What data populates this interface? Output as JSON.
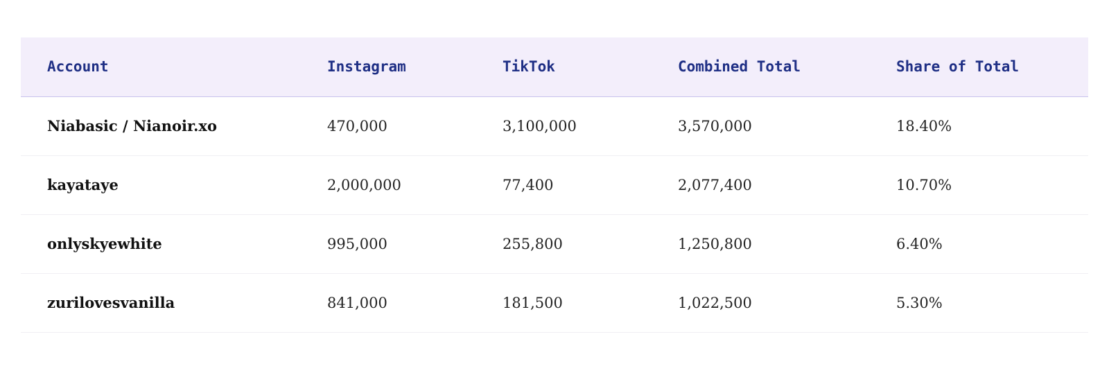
{
  "table": {
    "headers": [
      "Account",
      "Instagram",
      "TikTok",
      "Combined Total",
      "Share of Total"
    ],
    "rows": [
      [
        "Niabasic / Nianoir.xo",
        "470,000",
        "3,100,000",
        "3,570,000",
        "18.40%"
      ],
      [
        "kayataye",
        "2,000,000",
        "77,400",
        "2,077,400",
        "10.70%"
      ],
      [
        "onlyskyewhite",
        "995,000",
        "255,800",
        "1,250,800",
        "6.40%"
      ],
      [
        "zurilovesvanilla",
        "841,000",
        "181,500",
        "1,022,500",
        "5.30%"
      ]
    ]
  },
  "colors": {
    "header_bg": "#f3eefb",
    "header_text": "#1f2f85",
    "header_border": "#c6c1ec"
  }
}
